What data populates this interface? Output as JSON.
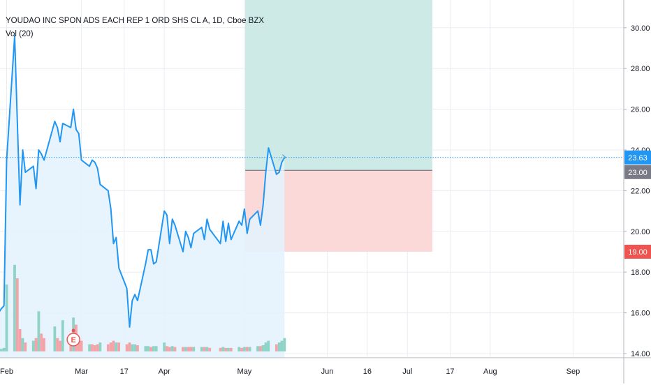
{
  "header": {
    "title": "YOUDAO INC SPON ADS EACH REP 1 ORD SHS CL A, 1D, Cboe BZX",
    "volume_label": "Vol (20)"
  },
  "colors": {
    "price_line": "#2196f3",
    "area_fill": "#e3f2fd",
    "grid": "#e9edf1",
    "axis_text": "#131722",
    "profit_zone": "#cdeae7",
    "loss_zone": "#fbd9d9",
    "last_price_badge": "#2196f3",
    "entry_badge": "#787b86",
    "stop_badge": "#ef5350",
    "vol_up": "#8fd2c6",
    "vol_down": "#f4a3a8",
    "earnings_marker": "#ef5350"
  },
  "chart_data": {
    "type": "line",
    "price_axis": {
      "ticks": [
        14,
        16,
        18,
        20,
        22,
        24,
        26,
        28,
        30
      ],
      "tick_labels": [
        "14.00",
        "16.00",
        "18.00",
        "20.00",
        "22.00",
        "24.00",
        "26.00",
        "28.00",
        "30.00"
      ],
      "range": [
        13.9,
        31.4
      ]
    },
    "time_axis": {
      "tick_labels": [
        "Feb",
        "Mar",
        "17",
        "Apr",
        "May",
        "Jun",
        "16",
        "Jul",
        "17",
        "Aug",
        "Sep"
      ]
    },
    "badges": {
      "last_price": "23.63",
      "entry": "23.00",
      "stop": "19.00"
    },
    "position": {
      "entry": 23.0,
      "stop": 19.0,
      "target": 31.4
    },
    "earnings_marker": {
      "label": "E",
      "date": "Feb 26"
    },
    "price_series": [
      [
        "Jan 24",
        15.7
      ],
      [
        "Jan 25",
        15.8
      ],
      [
        "Jan 28",
        15.9
      ],
      [
        "Jan 29",
        16.0
      ],
      [
        "Jan 30",
        16.2
      ],
      [
        "Jan 31",
        16.35
      ],
      [
        "Feb 1",
        23.5
      ],
      [
        "Feb 4",
        29.6
      ],
      [
        "Feb 5",
        25.4
      ],
      [
        "Feb 6",
        21.3
      ],
      [
        "Feb 7",
        24.0
      ],
      [
        "Feb 8",
        22.9
      ],
      [
        "Feb 11",
        23.2
      ],
      [
        "Feb 12",
        22.1
      ],
      [
        "Feb 13",
        24.0
      ],
      [
        "Feb 14",
        23.8
      ],
      [
        "Feb 15",
        23.5
      ],
      [
        "Feb 19",
        25.4
      ],
      [
        "Feb 20",
        25.1
      ],
      [
        "Feb 21",
        24.4
      ],
      [
        "Feb 22",
        25.3
      ],
      [
        "Feb 25",
        25.1
      ],
      [
        "Feb 26",
        26.0
      ],
      [
        "Feb 27",
        25.0
      ],
      [
        "Feb 28",
        24.8
      ],
      [
        "Mar 1",
        23.5
      ],
      [
        "Mar 4",
        23.2
      ],
      [
        "Mar 5",
        23.5
      ],
      [
        "Mar 6",
        23.4
      ],
      [
        "Mar 7",
        23.1
      ],
      [
        "Mar 8",
        22.3
      ],
      [
        "Mar 11",
        22.0
      ],
      [
        "Mar 12",
        21.1
      ],
      [
        "Mar 13",
        19.4
      ],
      [
        "Mar 14",
        19.7
      ],
      [
        "Mar 15",
        18.2
      ],
      [
        "Mar 18",
        17.2
      ],
      [
        "Mar 19",
        15.3
      ],
      [
        "Mar 20",
        16.6
      ],
      [
        "Mar 21",
        16.9
      ],
      [
        "Mar 22",
        16.6
      ],
      [
        "Mar 25",
        18.4
      ],
      [
        "Mar 26",
        19.1
      ],
      [
        "Mar 27",
        19.1
      ],
      [
        "Mar 28",
        18.4
      ],
      [
        "Mar 29",
        18.5
      ],
      [
        "Apr 1",
        21.0
      ],
      [
        "Apr 2",
        20.8
      ],
      [
        "Apr 3",
        19.4
      ],
      [
        "Apr 4",
        20.6
      ],
      [
        "Apr 5",
        20.3
      ],
      [
        "Apr 8",
        19.0
      ],
      [
        "Apr 9",
        20.0
      ],
      [
        "Apr 10",
        19.7
      ],
      [
        "Apr 11",
        19.2
      ],
      [
        "Apr 12",
        19.9
      ],
      [
        "Apr 15",
        20.2
      ],
      [
        "Apr 16",
        19.6
      ],
      [
        "Apr 17",
        20.6
      ],
      [
        "Apr 18",
        20.1
      ],
      [
        "Apr 22",
        19.4
      ],
      [
        "Apr 23",
        20.5
      ],
      [
        "Apr 24",
        19.5
      ],
      [
        "Apr 25",
        20.4
      ],
      [
        "Apr 26",
        19.6
      ],
      [
        "Apr 29",
        20.5
      ],
      [
        "Apr 30",
        20.3
      ],
      [
        "May 1",
        21.1
      ],
      [
        "May 2",
        19.9
      ],
      [
        "May 3",
        20.6
      ],
      [
        "May 6",
        21.0
      ],
      [
        "May 7",
        20.3
      ],
      [
        "May 8",
        21.3
      ],
      [
        "May 9",
        22.9
      ],
      [
        "May 10",
        24.1
      ],
      [
        "May 13",
        22.8
      ],
      [
        "May 14",
        22.9
      ],
      [
        "May 15",
        23.4
      ],
      [
        "May 16",
        23.63
      ]
    ],
    "volume_series": [
      [
        "Jan 24",
        0.02,
        "up"
      ],
      [
        "Jan 25",
        0.02,
        "up"
      ],
      [
        "Jan 28",
        0.03,
        "up"
      ],
      [
        "Jan 29",
        0.03,
        "up"
      ],
      [
        "Jan 30",
        0.03,
        "up"
      ],
      [
        "Jan 31",
        0.04,
        "up"
      ],
      [
        "Feb 1",
        0.75,
        "up"
      ],
      [
        "Feb 4",
        0.97,
        "up"
      ],
      [
        "Feb 5",
        0.82,
        "down"
      ],
      [
        "Feb 6",
        0.25,
        "down"
      ],
      [
        "Feb 7",
        0.15,
        "up"
      ],
      [
        "Feb 8",
        0.1,
        "down"
      ],
      [
        "Feb 11",
        0.12,
        "up"
      ],
      [
        "Feb 12",
        0.15,
        "down"
      ],
      [
        "Feb 13",
        0.45,
        "up"
      ],
      [
        "Feb 14",
        0.2,
        "down"
      ],
      [
        "Feb 15",
        0.15,
        "down"
      ],
      [
        "Feb 19",
        0.28,
        "up"
      ],
      [
        "Feb 20",
        0.15,
        "down"
      ],
      [
        "Feb 21",
        0.12,
        "down"
      ],
      [
        "Feb 22",
        0.35,
        "up"
      ],
      [
        "Feb 25",
        0.2,
        "down"
      ],
      [
        "Feb 26",
        0.38,
        "up"
      ],
      [
        "Feb 27",
        0.3,
        "down"
      ],
      [
        "Feb 28",
        0.15,
        "down"
      ],
      [
        "Mar 1",
        0.12,
        "down"
      ],
      [
        "Mar 4",
        0.08,
        "up"
      ],
      [
        "Mar 5",
        0.08,
        "down"
      ],
      [
        "Mar 6",
        0.07,
        "down"
      ],
      [
        "Mar 7",
        0.08,
        "down"
      ],
      [
        "Mar 8",
        0.1,
        "up"
      ],
      [
        "Mar 11",
        0.08,
        "down"
      ],
      [
        "Mar 12",
        0.1,
        "down"
      ],
      [
        "Mar 13",
        0.12,
        "down"
      ],
      [
        "Mar 14",
        0.1,
        "up"
      ],
      [
        "Mar 15",
        0.1,
        "down"
      ],
      [
        "Mar 18",
        0.08,
        "down"
      ],
      [
        "Mar 19",
        0.1,
        "down"
      ],
      [
        "Mar 20",
        0.08,
        "up"
      ],
      [
        "Mar 21",
        0.08,
        "up"
      ],
      [
        "Mar 22",
        0.07,
        "down"
      ],
      [
        "Mar 25",
        0.06,
        "up"
      ],
      [
        "Mar 26",
        0.06,
        "up"
      ],
      [
        "Mar 27",
        0.05,
        "down"
      ],
      [
        "Mar 28",
        0.06,
        "up"
      ],
      [
        "Mar 29",
        0.06,
        "up"
      ],
      [
        "Apr 1",
        0.1,
        "up"
      ],
      [
        "Apr 2",
        0.06,
        "down"
      ],
      [
        "Apr 3",
        0.05,
        "down"
      ],
      [
        "Apr 4",
        0.06,
        "up"
      ],
      [
        "Apr 5",
        0.05,
        "down"
      ],
      [
        "Apr 8",
        0.05,
        "down"
      ],
      [
        "Apr 9",
        0.05,
        "up"
      ],
      [
        "Apr 10",
        0.05,
        "down"
      ],
      [
        "Apr 11",
        0.05,
        "down"
      ],
      [
        "Apr 12",
        0.05,
        "up"
      ],
      [
        "Apr 15",
        0.05,
        "up"
      ],
      [
        "Apr 16",
        0.05,
        "down"
      ],
      [
        "Apr 17",
        0.05,
        "up"
      ],
      [
        "Apr 18",
        0.04,
        "down"
      ],
      [
        "Apr 22",
        0.04,
        "down"
      ],
      [
        "Apr 23",
        0.05,
        "up"
      ],
      [
        "Apr 24",
        0.04,
        "down"
      ],
      [
        "Apr 25",
        0.04,
        "up"
      ],
      [
        "Apr 26",
        0.04,
        "down"
      ],
      [
        "Apr 29",
        0.05,
        "up"
      ],
      [
        "Apr 30",
        0.04,
        "down"
      ],
      [
        "May 1",
        0.05,
        "up"
      ],
      [
        "May 2",
        0.05,
        "down"
      ],
      [
        "May 3",
        0.05,
        "up"
      ],
      [
        "May 6",
        0.06,
        "up"
      ],
      [
        "May 7",
        0.06,
        "down"
      ],
      [
        "May 8",
        0.07,
        "up"
      ],
      [
        "May 9",
        0.1,
        "up"
      ],
      [
        "May 10",
        0.12,
        "up"
      ],
      [
        "May 13",
        0.08,
        "down"
      ],
      [
        "May 14",
        0.1,
        "up"
      ],
      [
        "May 15",
        0.12,
        "up"
      ],
      [
        "May 16",
        0.15,
        "up"
      ]
    ]
  }
}
